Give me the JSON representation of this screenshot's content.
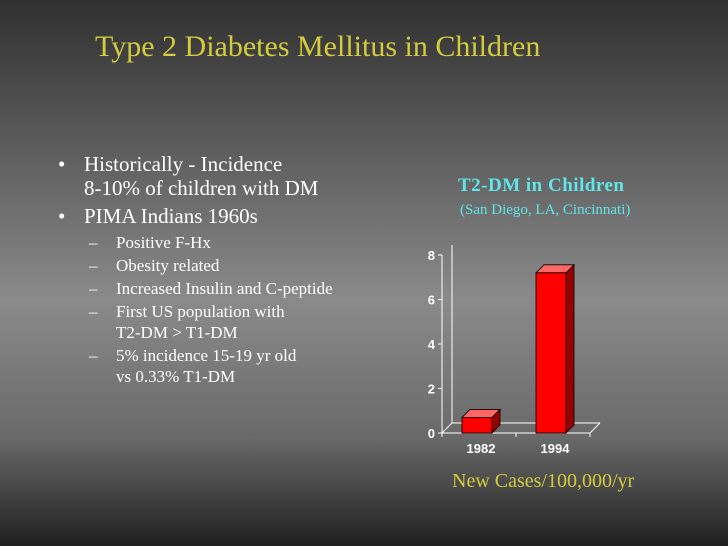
{
  "slide": {
    "title": "Type 2 Diabetes Mellitus in Children"
  },
  "bullets": [
    {
      "mark": "•",
      "text": "Historically - Incidence\n8-10% of children with DM"
    },
    {
      "mark": "•",
      "text": "PIMA Indians 1960s",
      "sub": [
        {
          "mark": "–",
          "text": "Positive F-Hx"
        },
        {
          "mark": "–",
          "text": "Obesity related"
        },
        {
          "mark": "–",
          "text": "Increased Insulin and C-peptide"
        },
        {
          "mark": "–",
          "text": "First US population with\nT2-DM > T1-DM"
        },
        {
          "mark": "–",
          "text": "5% incidence 15-19 yr old\nvs  0.33% T1-DM"
        }
      ]
    }
  ],
  "chart_data": {
    "type": "bar",
    "title": "T2-DM in Children",
    "subtitle": "(San Diego, LA, Cincinnati)",
    "xlabel": "New Cases/100,000/yr",
    "ylabel": "",
    "categories": [
      "1982",
      "1994"
    ],
    "values": [
      0.7,
      7.2
    ],
    "ylim": [
      0,
      8
    ],
    "yticks": [
      "0",
      "2",
      "4",
      "6",
      "8"
    ],
    "bar_color": "#ff0000",
    "grid": false,
    "legend": "none"
  }
}
